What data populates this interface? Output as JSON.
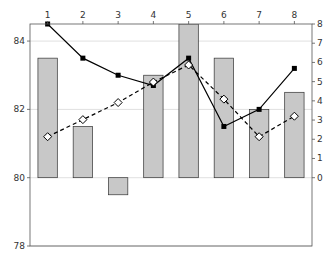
{
  "chart_data": {
    "type": "bar",
    "categories": [
      "1",
      "2",
      "3",
      "4",
      "5",
      "6",
      "7",
      "8"
    ],
    "series": [
      {
        "type": "bar",
        "color": "#c8c8c8",
        "values": [
          83.5,
          81.5,
          79.5,
          83.0,
          84.5,
          83.5,
          82.0,
          82.5
        ],
        "bottoms": [
          80.0,
          80.0,
          80.0,
          80.0,
          80.0,
          80.0,
          80.0,
          80.0
        ]
      },
      {
        "type": "line",
        "color": "#000000",
        "marker": "square",
        "line_style": "solid",
        "values": [
          84.5,
          83.5,
          83.0,
          82.7,
          83.5,
          81.5,
          82.0,
          83.2
        ]
      },
      {
        "type": "line",
        "color": "#000000",
        "marker": "diamond",
        "line_style": "dashed",
        "values": [
          81.2,
          81.7,
          82.2,
          82.8,
          83.3,
          82.3,
          81.2,
          81.8
        ]
      }
    ],
    "ylim": [
      78,
      84.5
    ],
    "yticks": [
      78,
      80,
      82,
      84
    ],
    "y2lim": [
      -3.5555555555555554,
      8
    ],
    "y2ticks": [
      0,
      1,
      2,
      3,
      4,
      5,
      6,
      7,
      8
    ],
    "grid": true
  }
}
